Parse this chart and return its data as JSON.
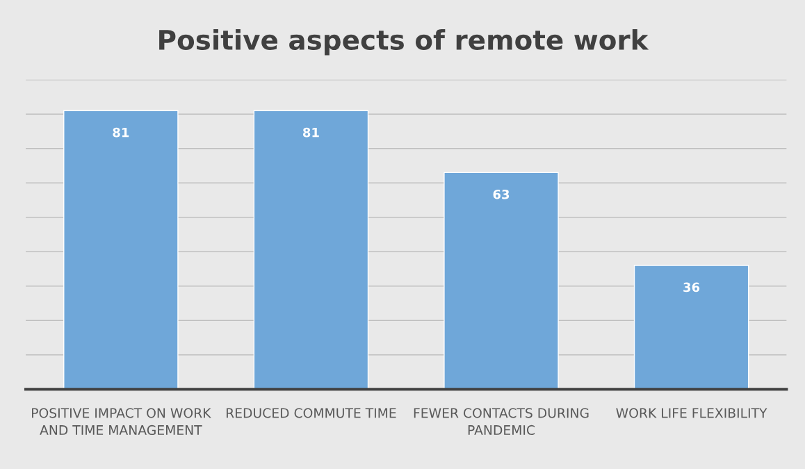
{
  "chart_data": {
    "type": "bar",
    "title": "Positive aspects of remote work",
    "categories": [
      "POSITIVE IMPACT ON WORK AND TIME MANAGEMENT",
      "REDUCED COMMUTE TIME",
      "FEWER CONTACTS DURING PANDEMIC",
      "WORK LIFE FLEXIBILITY"
    ],
    "values": [
      81,
      81,
      63,
      36
    ],
    "color": "#6fa7d9",
    "ylim": [
      0,
      90
    ],
    "yticks": [
      {
        "value": 0,
        "label": null
      },
      {
        "value": 10,
        "label": null
      },
      {
        "value": 20,
        "label": null
      },
      {
        "value": 30,
        "label": null
      },
      {
        "value": 40,
        "label": null
      },
      {
        "value": 50,
        "label": null
      },
      {
        "value": 60,
        "label": null
      },
      {
        "value": 70,
        "label": null
      },
      {
        "value": 80,
        "label": null
      },
      {
        "value": 90,
        "label": null
      }
    ],
    "grid": "y",
    "tick_labels": "x",
    "data_labels": true
  }
}
